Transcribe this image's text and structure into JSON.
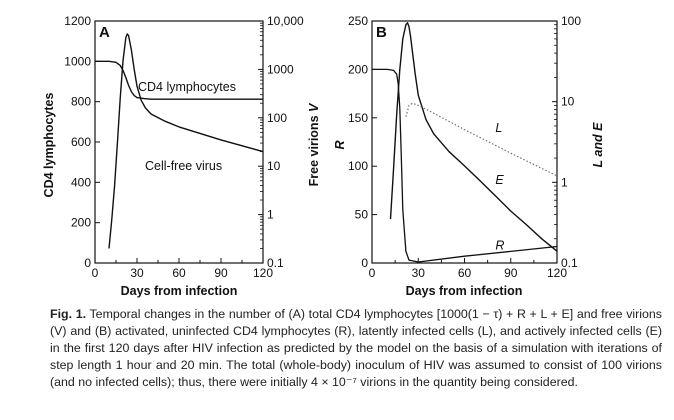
{
  "chart_data": [
    {
      "panel": "A",
      "type": "line",
      "xlabel": "Days from infection",
      "ylabel": "CD4 lymphocytes",
      "y2label": "Free virions V",
      "x_ticks": [
        "0",
        "30",
        "60",
        "90",
        "120"
      ],
      "y_ticks": [
        "0",
        "200",
        "400",
        "600",
        "800",
        "1000",
        "1200"
      ],
      "y2_ticks": [
        "0.1",
        "1",
        "10",
        "100",
        "1000",
        "10,000"
      ],
      "xlim": [
        0,
        120
      ],
      "ylim": [
        0,
        1200
      ],
      "y2lim": [
        0.1,
        10000
      ],
      "y2scale": "log",
      "annotations": [
        "CD4 lymphocytes",
        "Cell-free virus"
      ],
      "series": [
        {
          "axis": "left",
          "x": [
            0,
            10,
            15,
            18,
            20,
            22,
            24,
            26,
            28,
            30,
            35,
            40,
            50,
            60,
            90,
            120
          ],
          "y": [
            1000,
            1000,
            995,
            980,
            955,
            920,
            880,
            850,
            830,
            820,
            815,
            812,
            812,
            812,
            812,
            812
          ]
        },
        {
          "axis": "right",
          "x": [
            10,
            12,
            14,
            16,
            18,
            20,
            22,
            23,
            24,
            26,
            28,
            30,
            33,
            36,
            40,
            50,
            60,
            90,
            120
          ],
          "y": [
            0.2,
            0.8,
            4,
            30,
            250,
            1500,
            4500,
            5400,
            5000,
            2500,
            1000,
            450,
            230,
            160,
            120,
            85,
            65,
            35,
            20
          ]
        }
      ]
    },
    {
      "panel": "B",
      "type": "line",
      "xlabel": "Days from infection",
      "ylabel": "R",
      "y2label": "L and E",
      "x_ticks": [
        "0",
        "30",
        "60",
        "90",
        "120"
      ],
      "y_ticks": [
        "0",
        "50",
        "100",
        "150",
        "200",
        "250"
      ],
      "y2_ticks": [
        "0.1",
        "1",
        "10",
        "100"
      ],
      "xlim": [
        0,
        120
      ],
      "ylim": [
        0,
        250
      ],
      "y2lim": [
        0.1,
        100
      ],
      "y2scale": "log",
      "curve_labels": [
        "L",
        "E",
        "R"
      ],
      "series": [
        {
          "name": "R",
          "axis": "left",
          "x": [
            0,
            10,
            14,
            16,
            17,
            18,
            19,
            20,
            22,
            24,
            30,
            60,
            90,
            120
          ],
          "y": [
            200,
            200,
            199,
            195,
            185,
            160,
            110,
            55,
            12,
            3,
            1,
            7,
            12,
            17
          ]
        },
        {
          "name": "E",
          "axis": "right",
          "x": [
            12,
            14,
            16,
            18,
            20,
            22,
            23,
            24,
            25,
            26,
            28,
            30,
            35,
            40,
            50,
            60,
            70,
            80,
            90,
            100,
            110,
            120
          ],
          "y": [
            0.35,
            1.5,
            7,
            25,
            60,
            90,
            95,
            85,
            65,
            45,
            22,
            12,
            6,
            4,
            2.4,
            1.6,
            1.05,
            0.68,
            0.44,
            0.3,
            0.2,
            0.14
          ]
        },
        {
          "name": "L",
          "axis": "right",
          "x": [
            22,
            24,
            26,
            28,
            30,
            40,
            60,
            90,
            120
          ],
          "y": [
            6.5,
            9,
            9.5,
            9.3,
            9,
            7.2,
            4.5,
            2.3,
            1.2
          ]
        }
      ]
    }
  ],
  "caption": {
    "label": "Fig. 1.",
    "text": "Temporal changes in the number of (A) total CD4 lymphocytes [1000(1 − τ) + R + L + E] and free virions (V) and (B) activated, uninfected CD4 lymphocytes (R), latently infected cells (L), and actively infected cells (E) in the first 120 days after HIV infection as predicted by the model on the basis of a simulation with iterations of step length 1 hour and 20 min. The total (whole-body) inoculum of HIV was assumed to consist of 100 virions (and no infected cells); thus, there were initially 4 × 10⁻⁷ virions in the quantity being considered."
  },
  "colors": {
    "ink": "#111111",
    "dotted": "#666666",
    "caption": "#222222"
  }
}
